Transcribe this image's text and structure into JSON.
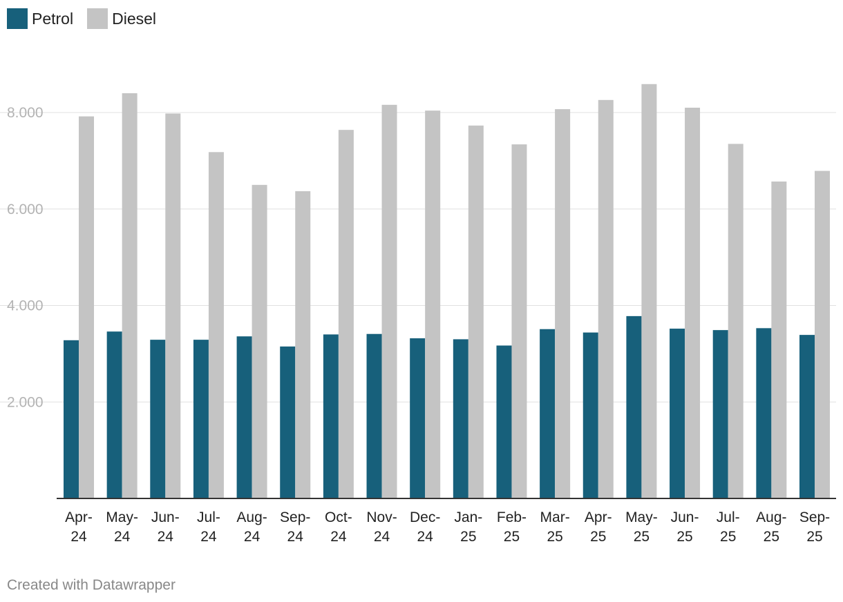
{
  "legend": [
    {
      "name": "Petrol",
      "color": "#17607b"
    },
    {
      "name": "Diesel",
      "color": "#c4c4c4"
    }
  ],
  "credit": "Created with Datawrapper",
  "chart_data": {
    "type": "bar",
    "title": "",
    "xlabel": "",
    "ylabel": "",
    "ylim": [
      0,
      9000
    ],
    "yticks": [
      2000,
      4000,
      6000,
      8000
    ],
    "ytick_labels": [
      "2.000",
      "4.000",
      "6.000",
      "8.000"
    ],
    "categories": [
      [
        "Apr-",
        "24"
      ],
      [
        "May-",
        "24"
      ],
      [
        "Jun-",
        "24"
      ],
      [
        "Jul-",
        "24"
      ],
      [
        "Aug-",
        "24"
      ],
      [
        "Sep-",
        "24"
      ],
      [
        "Oct-",
        "24"
      ],
      [
        "Nov-",
        "24"
      ],
      [
        "Dec-",
        "24"
      ],
      [
        "Jan-",
        "25"
      ],
      [
        "Feb-",
        "25"
      ],
      [
        "Mar-",
        "25"
      ],
      [
        "Apr-",
        "25"
      ],
      [
        "May-",
        "25"
      ],
      [
        "Jun-",
        "25"
      ],
      [
        "Jul-",
        "25"
      ],
      [
        "Aug-",
        "25"
      ],
      [
        "Sep-",
        "25"
      ]
    ],
    "series": [
      {
        "name": "Petrol",
        "color": "#17607b",
        "values": [
          3280,
          3460,
          3290,
          3290,
          3360,
          3150,
          3400,
          3410,
          3320,
          3300,
          3170,
          3510,
          3440,
          3780,
          3520,
          3490,
          3530,
          3390
        ]
      },
      {
        "name": "Diesel",
        "color": "#c4c4c4",
        "values": [
          7920,
          8400,
          7980,
          7180,
          6500,
          6370,
          7640,
          8160,
          8040,
          7730,
          7340,
          8070,
          8260,
          8590,
          8100,
          7350,
          6570,
          6790
        ]
      }
    ],
    "grid": true,
    "legend_position": "top-left"
  }
}
